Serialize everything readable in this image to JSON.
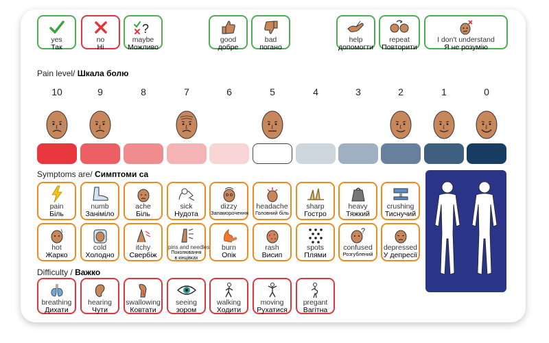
{
  "quick_cards": [
    {
      "id": "yes",
      "en": "yes",
      "uk": "Так",
      "icon": "check-icon"
    },
    {
      "id": "no",
      "en": "no",
      "uk": "Ні",
      "icon": "cross-icon"
    },
    {
      "id": "maybe",
      "en": "maybe",
      "uk": "Можливо",
      "icon": "maybe-icon"
    },
    {
      "id": "good",
      "en": "good",
      "uk": "добре",
      "icon": "thumbs-up-icon"
    },
    {
      "id": "bad",
      "en": "bad",
      "uk": "погано",
      "icon": "thumbs-down-icon"
    },
    {
      "id": "help",
      "en": "help",
      "uk": "допомогти",
      "icon": "help-hand-icon"
    },
    {
      "id": "repeat",
      "en": "repeat",
      "uk": "Повторити",
      "icon": "repeat-icon"
    },
    {
      "id": "dont-understand",
      "en": "I don't understand",
      "uk": "Я не розумію",
      "icon": "confused-face-icon"
    }
  ],
  "pain": {
    "heading_en": "Pain level/",
    "heading_uk": "Шкала болю",
    "levels": [
      {
        "value": "10",
        "color": "#e8383d"
      },
      {
        "value": "9",
        "color": "#ec5f63"
      },
      {
        "value": "8",
        "color": "#f08c8d"
      },
      {
        "value": "7",
        "color": "#f4b3b4"
      },
      {
        "value": "6",
        "color": "#f8d6d6"
      },
      {
        "value": "5",
        "color": "#ffffff"
      },
      {
        "value": "4",
        "color": "#cdd5dd"
      },
      {
        "value": "3",
        "color": "#9fb0c2"
      },
      {
        "value": "2",
        "color": "#66809d"
      },
      {
        "value": "1",
        "color": "#3e5f80"
      },
      {
        "value": "0",
        "color": "#173d63"
      }
    ]
  },
  "symptoms": {
    "heading_en": "Symptoms are/",
    "heading_uk": "Симптоми са",
    "row1": [
      {
        "en": "pain",
        "uk": "Біль",
        "icon": "lightning-icon"
      },
      {
        "en": "numb",
        "uk": "Заніміло",
        "icon": "foot-icon"
      },
      {
        "en": "ache",
        "uk": "Біль",
        "icon": "ache-icon"
      },
      {
        "en": "sick",
        "uk": "Нудота",
        "icon": "sick-icon"
      },
      {
        "en": "dizzy",
        "uk": "Запаморочення",
        "icon": "dizzy-icon"
      },
      {
        "en": "headache",
        "uk": "Головний біль",
        "icon": "headache-icon"
      },
      {
        "en": "sharp",
        "uk": "Гостро",
        "icon": "sharp-icon"
      },
      {
        "en": "heavy",
        "uk": "Тяжкий",
        "icon": "weight-icon"
      },
      {
        "en": "crushing",
        "uk": "Тиснучий",
        "icon": "crushing-icon"
      }
    ],
    "row2": [
      {
        "en": "hot",
        "uk": "Жарко",
        "icon": "hot-face-icon"
      },
      {
        "en": "cold",
        "uk": "Холодно",
        "icon": "cold-face-icon"
      },
      {
        "en": "itchy",
        "uk": "Свербіж",
        "icon": "itchy-icon"
      },
      {
        "en": "pins and needles",
        "uk": "Поколювання в кінцівках",
        "icon": "pins-needles-icon"
      },
      {
        "en": "burn",
        "uk": "Опік",
        "icon": "burn-icon"
      },
      {
        "en": "rash",
        "uk": "Висип",
        "icon": "rash-icon"
      },
      {
        "en": "spots",
        "uk": "Плями",
        "icon": "spots-icon"
      },
      {
        "en": "confused",
        "uk": "Розгублений",
        "icon": "confused-icon"
      },
      {
        "en": "depressed",
        "uk": "У депресії",
        "icon": "depressed-icon"
      }
    ]
  },
  "difficulty": {
    "heading_en": "Difficulty /",
    "heading_uk": "Важко",
    "items": [
      {
        "en": "breathing",
        "uk": "Дихати",
        "icon": "lungs-icon"
      },
      {
        "en": "hearing",
        "uk": "Чути",
        "icon": "ear-icon"
      },
      {
        "en": "swallowing",
        "uk": "Ковтати",
        "icon": "throat-icon"
      },
      {
        "en": "seeing",
        "uk": "зором",
        "icon": "eye-icon"
      },
      {
        "en": "walking",
        "uk": "Ходити",
        "icon": "walking-icon"
      },
      {
        "en": "moving",
        "uk": "Рухатися",
        "icon": "moving-icon"
      },
      {
        "en": "pregant",
        "uk": "Вагітна",
        "icon": "pregnant-icon"
      }
    ]
  },
  "colors": {
    "green": "#4caf50",
    "orange": "#ef8a1f",
    "red": "#e0353b",
    "body_panel": "#2b3588",
    "skin": "#c8875a"
  }
}
